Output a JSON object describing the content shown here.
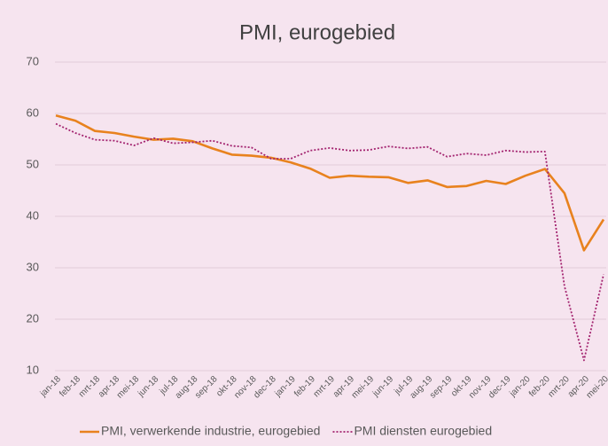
{
  "chart_data": {
    "type": "line",
    "title": "PMI, eurogebied",
    "categories": [
      "jan-18",
      "feb-18",
      "mrt-18",
      "apr-18",
      "mei-18",
      "jun-18",
      "jul-18",
      "aug-18",
      "sep-18",
      "okt-18",
      "nov-18",
      "dec-18",
      "jan-19",
      "feb-19",
      "mrt-19",
      "apr-19",
      "mei-19",
      "jun-19",
      "jul-19",
      "aug-19",
      "sep-19",
      "okt-19",
      "nov-19",
      "dec-19",
      "jan-20",
      "feb-20",
      "mrt-20",
      "apr-20",
      "mei-20"
    ],
    "series": [
      {
        "name": "PMI, verwerkende industrie, eurogebied",
        "color": "#e8821e",
        "dash": "solid",
        "values": [
          59.6,
          58.6,
          56.6,
          56.2,
          55.5,
          54.9,
          55.1,
          54.6,
          53.2,
          52.0,
          51.8,
          51.4,
          50.5,
          49.3,
          47.5,
          47.9,
          47.7,
          47.6,
          46.5,
          47.0,
          45.7,
          45.9,
          46.9,
          46.3,
          47.9,
          49.2,
          44.5,
          33.4,
          39.4
        ]
      },
      {
        "name": "PMI diensten eurogebied",
        "color": "#a3236f",
        "dash": "dotted",
        "values": [
          58.0,
          56.2,
          54.9,
          54.7,
          53.8,
          55.2,
          54.2,
          54.4,
          54.7,
          53.7,
          53.4,
          51.2,
          51.2,
          52.8,
          53.3,
          52.8,
          52.9,
          53.6,
          53.2,
          53.5,
          51.6,
          52.2,
          51.9,
          52.8,
          52.5,
          52.6,
          26.4,
          12.0,
          28.7
        ]
      }
    ],
    "ylim": [
      10,
      70
    ],
    "yticks": [
      10,
      20,
      30,
      40,
      50,
      60,
      70
    ],
    "grid": true,
    "legend": "bottom"
  }
}
